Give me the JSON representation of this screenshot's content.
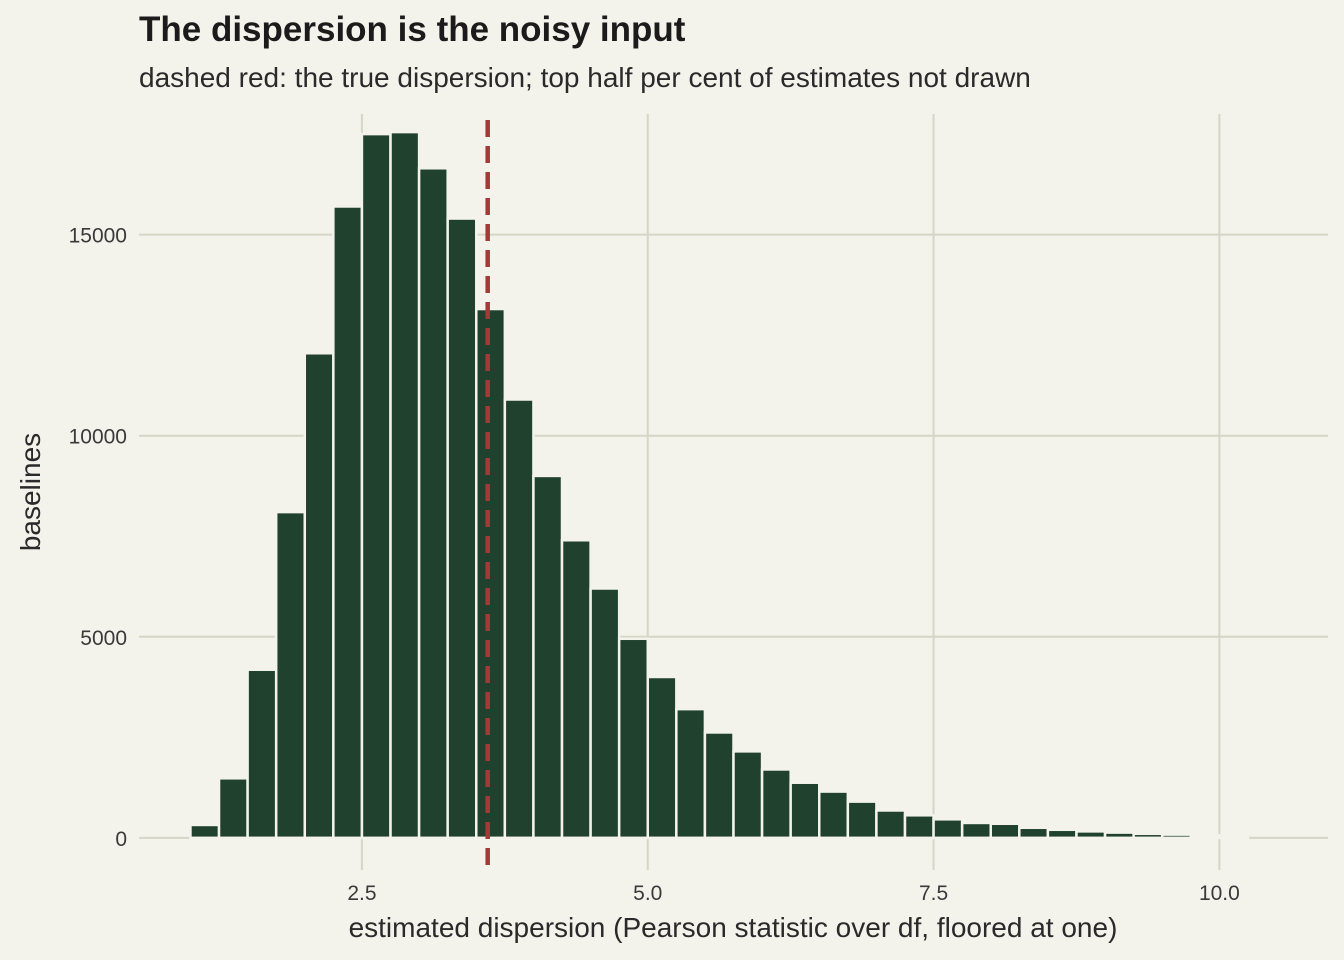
{
  "chart_data": {
    "type": "bar",
    "title": "The dispersion is the noisy input",
    "subtitle": "dashed red: the true dispersion; top half per cent of estimates not drawn",
    "xlabel": "estimated dispersion (Pearson statistic over df, floored at one)",
    "ylabel": "baselines",
    "xlim": [
      0.55,
      10.95
    ],
    "ylim": [
      -800,
      18000
    ],
    "x_ticks": [
      2.5,
      5.0,
      7.5,
      10.0
    ],
    "x_tick_labels": [
      "2.5",
      "5.0",
      "7.5",
      "10.0"
    ],
    "y_ticks": [
      0,
      5000,
      10000,
      15000
    ],
    "y_tick_labels": [
      "0",
      "5000",
      "10000",
      "15000"
    ],
    "grid": true,
    "true_dispersion": 3.6,
    "bin_width": 0.25,
    "bins": [
      {
        "x": 1.125,
        "value": 320
      },
      {
        "x": 1.375,
        "value": 1480
      },
      {
        "x": 1.625,
        "value": 4180
      },
      {
        "x": 1.875,
        "value": 8100
      },
      {
        "x": 2.125,
        "value": 12050
      },
      {
        "x": 2.375,
        "value": 15700
      },
      {
        "x": 2.625,
        "value": 17500
      },
      {
        "x": 2.875,
        "value": 17550
      },
      {
        "x": 3.125,
        "value": 16650
      },
      {
        "x": 3.375,
        "value": 15400
      },
      {
        "x": 3.625,
        "value": 13150
      },
      {
        "x": 3.875,
        "value": 10900
      },
      {
        "x": 4.125,
        "value": 9000
      },
      {
        "x": 4.375,
        "value": 7400
      },
      {
        "x": 4.625,
        "value": 6200
      },
      {
        "x": 4.875,
        "value": 4950
      },
      {
        "x": 5.125,
        "value": 4000
      },
      {
        "x": 5.375,
        "value": 3200
      },
      {
        "x": 5.625,
        "value": 2620
      },
      {
        "x": 5.875,
        "value": 2150
      },
      {
        "x": 6.125,
        "value": 1700
      },
      {
        "x": 6.375,
        "value": 1370
      },
      {
        "x": 6.625,
        "value": 1150
      },
      {
        "x": 6.875,
        "value": 900
      },
      {
        "x": 7.125,
        "value": 680
      },
      {
        "x": 7.375,
        "value": 560
      },
      {
        "x": 7.625,
        "value": 460
      },
      {
        "x": 7.875,
        "value": 370
      },
      {
        "x": 8.125,
        "value": 350
      },
      {
        "x": 8.375,
        "value": 250
      },
      {
        "x": 8.625,
        "value": 200
      },
      {
        "x": 8.875,
        "value": 160
      },
      {
        "x": 9.125,
        "value": 130
      },
      {
        "x": 9.375,
        "value": 100
      },
      {
        "x": 9.625,
        "value": 80
      },
      {
        "x": 9.875,
        "value": 60
      },
      {
        "x": 10.125,
        "value": 40
      }
    ],
    "colors": {
      "background": "#f3f2eb",
      "bar": "#21412f",
      "bar_outline": "#f3f2eb",
      "grid": "#d6d6c6",
      "true_line": "#a33a3a"
    }
  }
}
